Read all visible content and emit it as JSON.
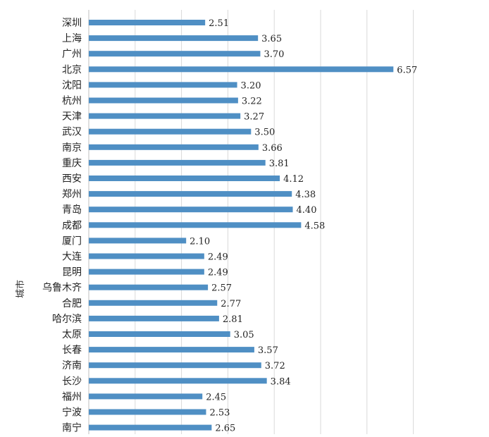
{
  "chart_data": {
    "type": "bar",
    "orientation": "horizontal",
    "title": "",
    "xlabel": "",
    "ylabel": "城市",
    "xlim": [
      0,
      7
    ],
    "grid": true,
    "legend": "none",
    "bar_color": "#4f8fc4",
    "grid_color": "#d9d9d9",
    "categories": [
      "深圳",
      "上海",
      "广州",
      "北京",
      "沈阳",
      "杭州",
      "天津",
      "武汉",
      "南京",
      "重庆",
      "西安",
      "郑州",
      "青岛",
      "成都",
      "厦门",
      "大连",
      "昆明",
      "乌鲁木齐",
      "合肥",
      "哈尔滨",
      "太原",
      "长春",
      "济南",
      "长沙",
      "福州",
      "宁波",
      "南宁"
    ],
    "values": [
      2.51,
      3.65,
      3.7,
      6.57,
      3.2,
      3.22,
      3.27,
      3.5,
      3.66,
      3.81,
      4.12,
      4.38,
      4.4,
      4.58,
      2.1,
      2.49,
      2.49,
      2.57,
      2.77,
      2.81,
      3.05,
      3.57,
      3.72,
      3.84,
      2.45,
      2.53,
      2.65
    ],
    "value_labels": [
      "2.51",
      "3.65",
      "3.70",
      "6.57",
      "3.20",
      "3.22",
      "3.27",
      "3.50",
      "3.66",
      "3.81",
      "4.12",
      "4.38",
      "4.40",
      "4.58",
      "2.10",
      "2.49",
      "2.49",
      "2.57",
      "2.77",
      "2.81",
      "3.05",
      "3.57",
      "3.72",
      "3.84",
      "2.45",
      "2.53",
      "2.65"
    ]
  }
}
